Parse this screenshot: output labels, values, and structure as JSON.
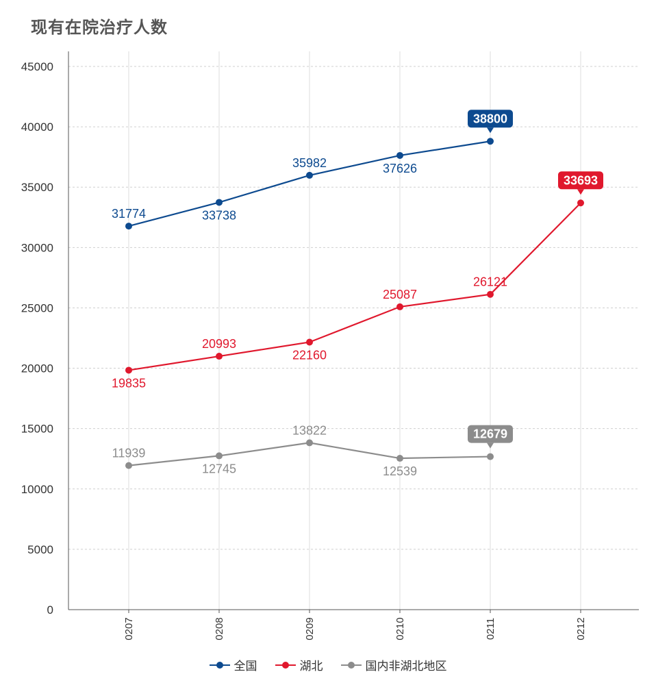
{
  "title": "现有在院治疗人数",
  "chart_data": {
    "type": "line",
    "categories": [
      "0207",
      "0208",
      "0209",
      "0210",
      "0211",
      "0212"
    ],
    "ylim": [
      0,
      45000
    ],
    "yticks": [
      0,
      5000,
      10000,
      15000,
      20000,
      25000,
      30000,
      35000,
      40000,
      45000
    ],
    "grid": true,
    "legend_position": "bottom",
    "series": [
      {
        "name": "全国",
        "color": "#0d4a8f",
        "values": [
          31774,
          33738,
          35982,
          37626,
          38800,
          null
        ],
        "labels": [
          "31774",
          "33738",
          "35982",
          "37626",
          "38800",
          ""
        ],
        "label_pos": [
          "above",
          "below",
          "above",
          "below",
          "callout",
          "none"
        ]
      },
      {
        "name": "湖北",
        "color": "#e0182d",
        "values": [
          19835,
          20993,
          22160,
          25087,
          26121,
          33693
        ],
        "labels": [
          "19835",
          "20993",
          "22160",
          "25087",
          "26121",
          "33693"
        ],
        "label_pos": [
          "below",
          "above",
          "below",
          "above",
          "above",
          "callout"
        ]
      },
      {
        "name": "国内非湖北地区",
        "color": "#8c8c8c",
        "values": [
          11939,
          12745,
          13822,
          12539,
          12679,
          null
        ],
        "labels": [
          "11939",
          "12745",
          "13822",
          "12539",
          "12679",
          ""
        ],
        "label_pos": [
          "above",
          "below",
          "above",
          "below",
          "callout",
          "none"
        ]
      }
    ]
  }
}
